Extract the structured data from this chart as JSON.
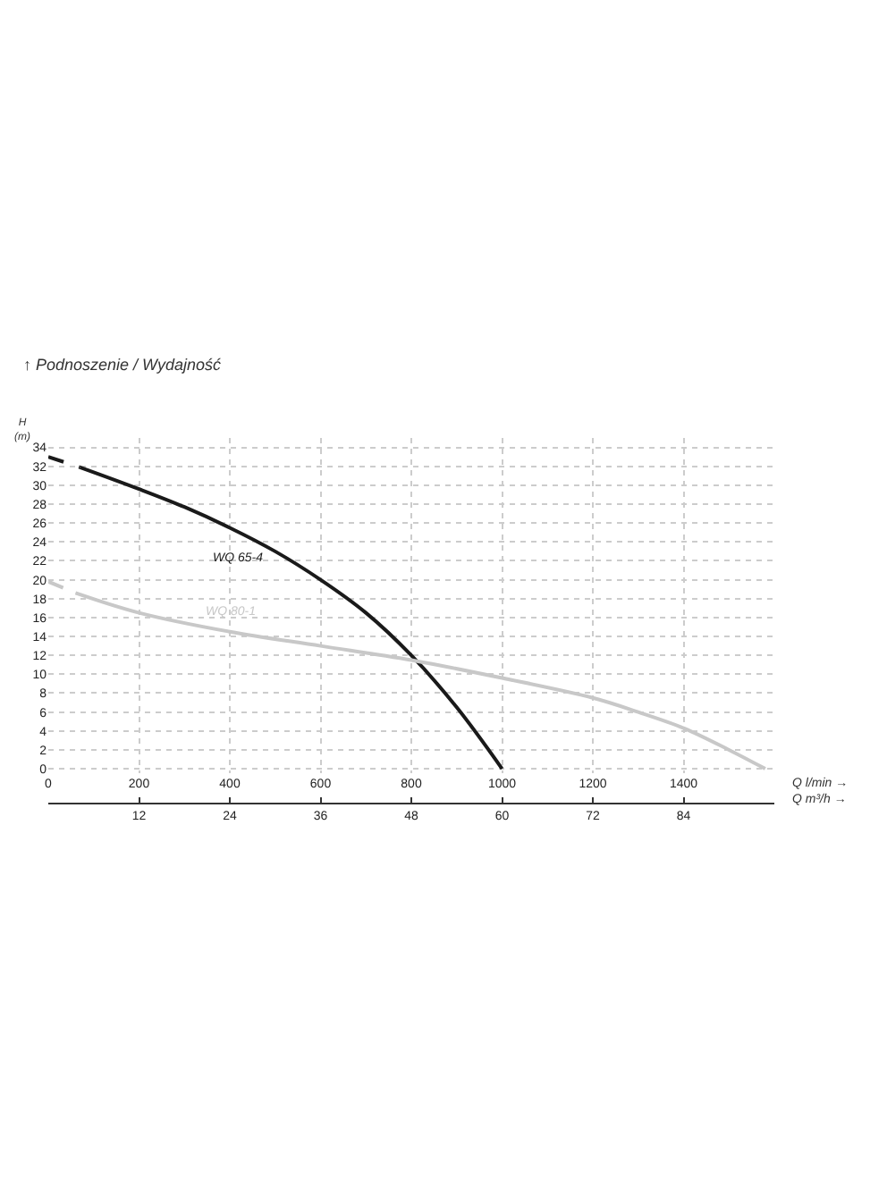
{
  "chart_data": {
    "type": "line",
    "title": "↑ Podnoszenie / Wydajność",
    "ylabel": "H (m)",
    "xlabel": "Q l/min →",
    "x2label": "Q m³/h →",
    "xlim": [
      0,
      1600
    ],
    "xticks": [
      0,
      200,
      400,
      600,
      800,
      1000,
      1200,
      1400
    ],
    "ylim": [
      -0.5,
      35
    ],
    "yticks": [
      0,
      2,
      4,
      6,
      8,
      10,
      12,
      14,
      16,
      18,
      20,
      22,
      24,
      26,
      28,
      30,
      32,
      34
    ],
    "x2lim": [
      0,
      96
    ],
    "x2ticks": [
      12,
      24,
      36,
      48,
      60,
      72,
      84
    ],
    "grid": true,
    "legend": false,
    "marker": "none",
    "series": [
      {
        "color": "#1a1a1a",
        "line_style": "dashed",
        "x": [
          0,
          70
        ],
        "values": [
          33,
          31.9
        ]
      },
      {
        "name": "WQ 65-4",
        "color": "#1a1a1a",
        "line_style": "solid",
        "x": [
          70,
          200,
          300,
          400,
          500,
          600,
          700,
          800,
          900,
          1000
        ],
        "values": [
          31.9,
          29.6,
          27.7,
          25.5,
          23,
          20,
          16.5,
          12,
          6.5,
          0
        ]
      },
      {
        "color": "#c8c8c8",
        "line_style": "dashed",
        "x": [
          0,
          60
        ],
        "values": [
          19.8,
          18.6
        ]
      },
      {
        "name": "WQ 80-1",
        "color": "#c8c8c8",
        "line_style": "solid",
        "x": [
          60,
          200,
          400,
          600,
          800,
          1000,
          1200,
          1300,
          1400,
          1500,
          1580
        ],
        "values": [
          18.6,
          16.5,
          14.5,
          13,
          11.5,
          9.6,
          7.5,
          6,
          4.3,
          2,
          0
        ]
      }
    ]
  }
}
